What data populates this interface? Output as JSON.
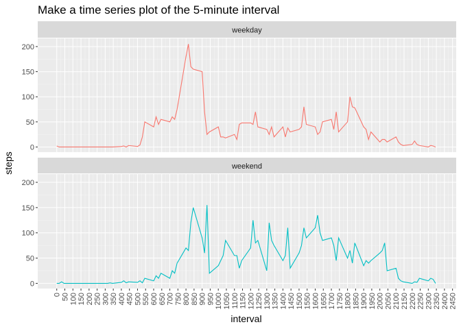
{
  "chart_data": {
    "type": "line",
    "title": "Make a time series plot of the 5-minute interval",
    "xlabel": "interval",
    "ylabel": "steps",
    "x": [
      0,
      15,
      30,
      45,
      100,
      115,
      130,
      145,
      200,
      215,
      230,
      245,
      300,
      315,
      330,
      345,
      400,
      415,
      430,
      445,
      500,
      515,
      530,
      545,
      600,
      615,
      630,
      645,
      700,
      715,
      730,
      745,
      800,
      815,
      830,
      845,
      900,
      915,
      930,
      945,
      1000,
      1015,
      1030,
      1045,
      1100,
      1115,
      1130,
      1145,
      1200,
      1215,
      1230,
      1245,
      1300,
      1315,
      1330,
      1345,
      1400,
      1415,
      1430,
      1445,
      1500,
      1515,
      1530,
      1545,
      1600,
      1615,
      1630,
      1645,
      1700,
      1715,
      1730,
      1745,
      1800,
      1815,
      1830,
      1845,
      1900,
      1915,
      1930,
      1945,
      2000,
      2015,
      2030,
      2045,
      2100,
      2115,
      2130,
      2145,
      2200,
      2215,
      2230,
      2245,
      2300,
      2315,
      2330,
      2345
    ],
    "series": [
      {
        "name": "weekday",
        "color": "#F8766D",
        "values": [
          2,
          0,
          0,
          0,
          0,
          0,
          0,
          0,
          0,
          0,
          0,
          0,
          0,
          0,
          0,
          0,
          1,
          2,
          0,
          3,
          1,
          4,
          20,
          50,
          40,
          60,
          45,
          55,
          50,
          60,
          55,
          75,
          180,
          205,
          160,
          155,
          150,
          70,
          25,
          30,
          40,
          20,
          20,
          18,
          25,
          15,
          45,
          48,
          48,
          45,
          70,
          40,
          35,
          25,
          40,
          20,
          40,
          20,
          38,
          30,
          35,
          40,
          80,
          45,
          40,
          25,
          30,
          50,
          55,
          35,
          70,
          30,
          50,
          100,
          80,
          78,
          40,
          35,
          15,
          30,
          10,
          15,
          15,
          10,
          20,
          10,
          5,
          3,
          5,
          12,
          5,
          3,
          0,
          3,
          2,
          0
        ]
      },
      {
        "name": "weekend",
        "color": "#00BFC4",
        "values": [
          0,
          0,
          3,
          0,
          0,
          0,
          0,
          0,
          0,
          0,
          0,
          0,
          0,
          0,
          1,
          0,
          2,
          5,
          1,
          3,
          2,
          5,
          1,
          10,
          5,
          15,
          10,
          20,
          10,
          25,
          20,
          40,
          70,
          65,
          120,
          150,
          90,
          60,
          155,
          20,
          35,
          45,
          55,
          85,
          55,
          55,
          30,
          45,
          70,
          125,
          80,
          85,
          25,
          120,
          85,
          75,
          45,
          55,
          110,
          30,
          60,
          75,
          110,
          90,
          110,
          135,
          100,
          85,
          90,
          75,
          45,
          90,
          50,
          65,
          40,
          80,
          35,
          45,
          40,
          45,
          60,
          65,
          80,
          25,
          30,
          10,
          5,
          3,
          0,
          3,
          2,
          10,
          5,
          10,
          8,
          0
        ]
      }
    ],
    "xlim": [
      -117.75,
      2472.75
    ],
    "xticks": [
      0,
      50,
      100,
      150,
      200,
      250,
      300,
      350,
      400,
      450,
      500,
      550,
      600,
      650,
      700,
      750,
      800,
      850,
      900,
      950,
      1000,
      1050,
      1100,
      1150,
      1200,
      1250,
      1300,
      1350,
      1400,
      1450,
      1500,
      1550,
      1600,
      1650,
      1700,
      1750,
      1800,
      1850,
      1900,
      1950,
      2000,
      2050,
      2100,
      2150,
      2200,
      2250,
      2300,
      2350,
      2400,
      2450
    ],
    "ylim": [
      -10.3,
      216.3
    ],
    "yticks": [
      0,
      50,
      100,
      150,
      200
    ],
    "grid": true
  }
}
